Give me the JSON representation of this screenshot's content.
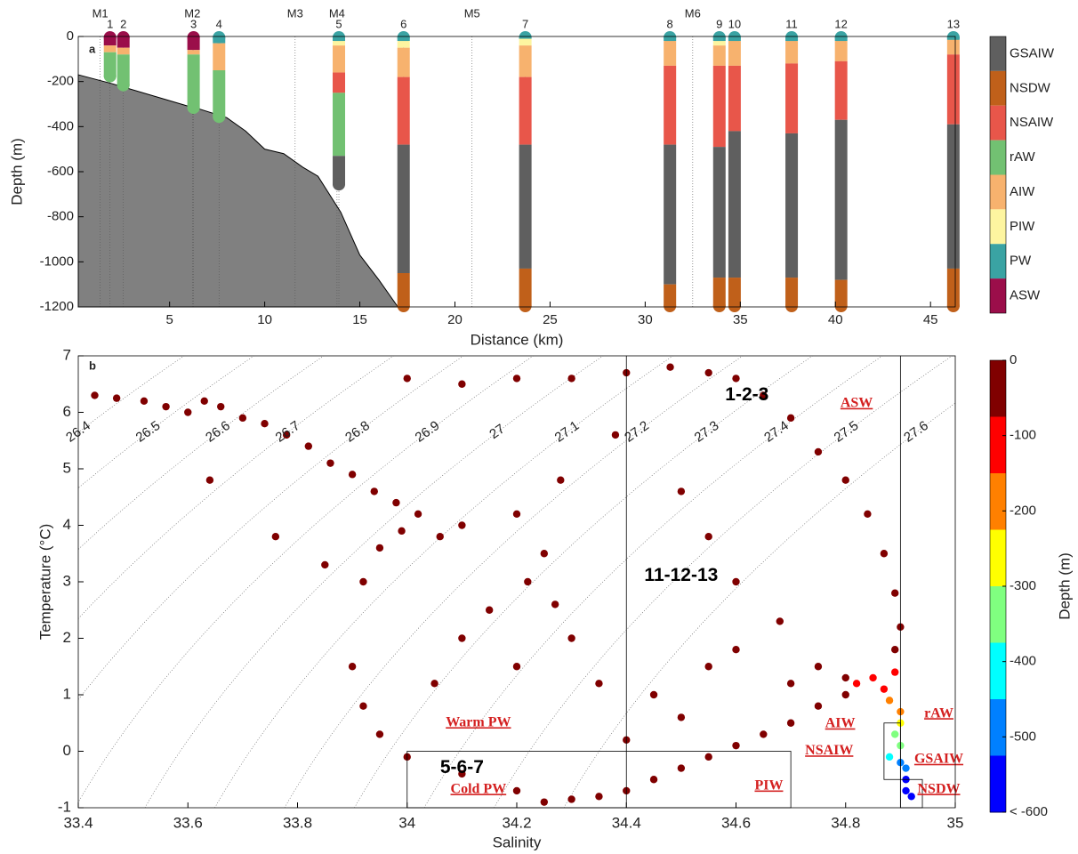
{
  "chart_data": [
    {
      "type": "range",
      "panel_label": "a",
      "xlabel": "Distance (km)",
      "ylabel": "Depth (m)",
      "xlim": [
        0.2,
        46.3
      ],
      "ylim": [
        -1200,
        0
      ],
      "xticks": [
        5,
        10,
        15,
        20,
        25,
        30,
        35,
        40,
        45
      ],
      "yticks": [
        -1200,
        -1000,
        -800,
        -600,
        -400,
        -200,
        0
      ],
      "legend": [
        {
          "name": "GSAIW",
          "color": "#5f5f5f"
        },
        {
          "name": "NSDW",
          "color": "#c0601a"
        },
        {
          "name": "NSAIW",
          "color": "#e8564a"
        },
        {
          "name": "rAW",
          "color": "#72c172"
        },
        {
          "name": "AIW",
          "color": "#f7b26e"
        },
        {
          "name": "PIW",
          "color": "#fdf5a0"
        },
        {
          "name": "PW",
          "color": "#3aa3a3"
        },
        {
          "name": "ASW",
          "color": "#9b0e4a"
        }
      ],
      "moorings": [
        {
          "name": "M1",
          "distance": 1.35
        },
        {
          "name": "M2",
          "distance": 6.2
        },
        {
          "name": "M3",
          "distance": 11.6
        },
        {
          "name": "M4",
          "distance": 13.8
        },
        {
          "name": "M5",
          "distance": 20.9
        },
        {
          "name": "M6",
          "distance": 32.5
        }
      ],
      "stations": [
        {
          "name": "1",
          "distance": 1.87,
          "layers": [
            {
              "mass": "ASW",
              "top": 0,
              "bottom": -40
            },
            {
              "mass": "AIW",
              "top": -40,
              "bottom": -70
            },
            {
              "mass": "rAW",
              "top": -70,
              "bottom": -180
            }
          ]
        },
        {
          "name": "2",
          "distance": 2.57,
          "layers": [
            {
              "mass": "ASW",
              "top": 0,
              "bottom": -50
            },
            {
              "mass": "AIW",
              "top": -50,
              "bottom": -80
            },
            {
              "mass": "rAW",
              "top": -80,
              "bottom": -220
            }
          ]
        },
        {
          "name": "3",
          "distance": 6.26,
          "layers": [
            {
              "mass": "ASW",
              "top": 0,
              "bottom": -60
            },
            {
              "mass": "AIW",
              "top": -60,
              "bottom": -80
            },
            {
              "mass": "rAW",
              "top": -80,
              "bottom": -320
            }
          ]
        },
        {
          "name": "4",
          "distance": 7.6,
          "layers": [
            {
              "mass": "PW",
              "top": 0,
              "bottom": -30
            },
            {
              "mass": "AIW",
              "top": -30,
              "bottom": -150
            },
            {
              "mass": "rAW",
              "top": -150,
              "bottom": -360
            }
          ]
        },
        {
          "name": "5",
          "distance": 13.9,
          "layers": [
            {
              "mass": "PW",
              "top": 0,
              "bottom": -20
            },
            {
              "mass": "PIW",
              "top": -20,
              "bottom": -40
            },
            {
              "mass": "AIW",
              "top": -40,
              "bottom": -160
            },
            {
              "mass": "NSAIW",
              "top": -160,
              "bottom": -250
            },
            {
              "mass": "rAW",
              "top": -250,
              "bottom": -530
            },
            {
              "mass": "GSAIW",
              "top": -530,
              "bottom": -660
            }
          ]
        },
        {
          "name": "6",
          "distance": 17.3,
          "layers": [
            {
              "mass": "PW",
              "top": 0,
              "bottom": -20
            },
            {
              "mass": "PIW",
              "top": -20,
              "bottom": -50
            },
            {
              "mass": "AIW",
              "top": -50,
              "bottom": -180
            },
            {
              "mass": "NSAIW",
              "top": -180,
              "bottom": -480
            },
            {
              "mass": "GSAIW",
              "top": -480,
              "bottom": -1050
            },
            {
              "mass": "NSDW",
              "top": -1050,
              "bottom": -1200
            }
          ]
        },
        {
          "name": "7",
          "distance": 23.7,
          "layers": [
            {
              "mass": "PW",
              "top": 0,
              "bottom": -10
            },
            {
              "mass": "PIW",
              "top": -10,
              "bottom": -40
            },
            {
              "mass": "AIW",
              "top": -40,
              "bottom": -180
            },
            {
              "mass": "NSAIW",
              "top": -180,
              "bottom": -480
            },
            {
              "mass": "GSAIW",
              "top": -480,
              "bottom": -1030
            },
            {
              "mass": "NSDW",
              "top": -1030,
              "bottom": -1200
            }
          ]
        },
        {
          "name": "8",
          "distance": 31.3,
          "layers": [
            {
              "mass": "PW",
              "top": 0,
              "bottom": -20
            },
            {
              "mass": "AIW",
              "top": -20,
              "bottom": -130
            },
            {
              "mass": "NSAIW",
              "top": -130,
              "bottom": -480
            },
            {
              "mass": "GSAIW",
              "top": -480,
              "bottom": -1100
            },
            {
              "mass": "NSDW",
              "top": -1100,
              "bottom": -1200
            }
          ]
        },
        {
          "name": "9",
          "distance": 33.9,
          "layers": [
            {
              "mass": "PW",
              "top": 0,
              "bottom": -20
            },
            {
              "mass": "PIW",
              "top": -20,
              "bottom": -40
            },
            {
              "mass": "AIW",
              "top": -40,
              "bottom": -130
            },
            {
              "mass": "NSAIW",
              "top": -130,
              "bottom": -490
            },
            {
              "mass": "GSAIW",
              "top": -490,
              "bottom": -1070
            },
            {
              "mass": "NSDW",
              "top": -1070,
              "bottom": -1200
            }
          ]
        },
        {
          "name": "10",
          "distance": 34.7,
          "layers": [
            {
              "mass": "PW",
              "top": 0,
              "bottom": -20
            },
            {
              "mass": "AIW",
              "top": -20,
              "bottom": -130
            },
            {
              "mass": "NSAIW",
              "top": -130,
              "bottom": -420
            },
            {
              "mass": "GSAIW",
              "top": -420,
              "bottom": -1070
            },
            {
              "mass": "NSDW",
              "top": -1070,
              "bottom": -1200
            }
          ]
        },
        {
          "name": "11",
          "distance": 37.7,
          "layers": [
            {
              "mass": "PW",
              "top": 0,
              "bottom": -20
            },
            {
              "mass": "AIW",
              "top": -20,
              "bottom": -120
            },
            {
              "mass": "NSAIW",
              "top": -120,
              "bottom": -430
            },
            {
              "mass": "GSAIW",
              "top": -430,
              "bottom": -1070
            },
            {
              "mass": "NSDW",
              "top": -1070,
              "bottom": -1200
            }
          ]
        },
        {
          "name": "12",
          "distance": 40.3,
          "layers": [
            {
              "mass": "PW",
              "top": 0,
              "bottom": -20
            },
            {
              "mass": "AIW",
              "top": -20,
              "bottom": -110
            },
            {
              "mass": "NSAIW",
              "top": -110,
              "bottom": -370
            },
            {
              "mass": "GSAIW",
              "top": -370,
              "bottom": -1080
            },
            {
              "mass": "NSDW",
              "top": -1080,
              "bottom": -1200
            }
          ]
        },
        {
          "name": "13",
          "distance": 46.2,
          "layers": [
            {
              "mass": "PW",
              "top": 0,
              "bottom": -15
            },
            {
              "mass": "AIW",
              "top": -15,
              "bottom": -80
            },
            {
              "mass": "NSAIW",
              "top": -80,
              "bottom": -390
            },
            {
              "mass": "GSAIW",
              "top": -390,
              "bottom": -1030
            },
            {
              "mass": "NSDW",
              "top": -1030,
              "bottom": -1200
            }
          ]
        }
      ],
      "bathymetry": {
        "x": [
          0.2,
          2,
          4,
          6,
          6.5,
          8,
          9,
          10,
          11,
          12,
          12.8,
          14,
          15,
          16,
          17
        ],
        "y": [
          -170,
          -210,
          -260,
          -310,
          -320,
          -360,
          -420,
          -500,
          -520,
          -580,
          -620,
          -780,
          -970,
          -1080,
          -1200
        ]
      }
    },
    {
      "type": "scatter",
      "panel_label": "b",
      "xlabel": "Salinity",
      "ylabel": "Temperature (°C)",
      "xlim": [
        33.4,
        35
      ],
      "ylim": [
        -1,
        7
      ],
      "xticks": [
        33.4,
        33.6,
        33.8,
        34,
        34.2,
        34.4,
        34.6,
        34.8,
        35
      ],
      "yticks": [
        -1,
        0,
        1,
        2,
        3,
        4,
        5,
        6,
        7
      ],
      "isopycnals": [
        26.4,
        26.5,
        26.6,
        26.7,
        26.8,
        26.9,
        27,
        27.1,
        27.2,
        27.3,
        27.4,
        27.5,
        27.6
      ],
      "reference_lines": [
        34.4,
        34.9
      ],
      "boxes": [
        {
          "x": [
            34,
            34.7
          ],
          "y": [
            -1,
            0
          ]
        },
        {
          "x": [
            34.87,
            34.9
          ],
          "y": [
            -0.5,
            0.5
          ]
        },
        {
          "x": [
            34.9,
            34.94
          ],
          "y": [
            -1,
            -0.5
          ]
        }
      ],
      "station_groups": [
        "1-2-3",
        "11-12-13",
        "5-6-7"
      ],
      "water_masses": [
        "ASW",
        "Warm PW",
        "Cold PW",
        "PIW",
        "AIW",
        "NSAIW",
        "rAW",
        "GSAIW",
        "NSDW"
      ],
      "points": {
        "s": [
          33.43,
          33.47,
          33.52,
          33.56,
          33.6,
          33.63,
          33.66,
          33.7,
          33.74,
          33.78,
          33.82,
          33.86,
          33.9,
          33.94,
          33.98,
          34.02,
          33.99,
          33.95,
          34.06,
          34.1,
          33.76,
          33.85,
          33.92,
          33.64,
          33.9,
          33.92,
          33.95,
          34,
          34.1,
          34.2,
          34.25,
          34.3,
          34.35,
          34.4,
          34.45,
          34.5,
          34.55,
          34.6,
          34.65,
          34.7,
          34.75,
          34.8,
          34,
          34.1,
          34.2,
          34.3,
          34.4,
          34.48,
          34.55,
          34.6,
          34.65,
          34.7,
          34.75,
          34.8,
          34.84,
          34.87,
          34.89,
          34.9,
          34.89,
          34.2,
          34.25,
          34.22,
          34.27,
          34.3,
          34.1,
          34.2,
          34.35,
          34.45,
          34.55,
          34.6,
          34.68,
          34.6,
          34.55,
          34.5,
          34.38,
          34.28,
          34.15,
          34.05,
          34.4,
          34.5,
          34.7,
          34.75,
          34.8,
          34.82,
          34.85,
          34.87,
          34.88,
          34.89,
          34.9,
          34.9,
          34.89,
          34.9,
          34.88,
          34.9,
          34.91,
          34.91,
          34.91,
          34.92
        ],
        "t": [
          6.3,
          6.25,
          6.2,
          6.1,
          6,
          6.2,
          6.1,
          5.9,
          5.8,
          5.6,
          5.4,
          5.1,
          4.9,
          4.6,
          4.4,
          4.2,
          3.9,
          3.6,
          3.8,
          4,
          3.8,
          3.3,
          3,
          4.8,
          1.5,
          0.8,
          0.3,
          -0.1,
          -0.4,
          -0.7,
          -0.9,
          -0.85,
          -0.8,
          -0.7,
          -0.5,
          -0.3,
          -0.1,
          0.1,
          0.3,
          0.5,
          0.8,
          1,
          6.6,
          6.5,
          6.6,
          6.6,
          6.7,
          6.8,
          6.7,
          6.6,
          6.3,
          5.9,
          5.3,
          4.8,
          4.2,
          3.5,
          2.8,
          2.2,
          1.8,
          4.2,
          3.5,
          3,
          2.6,
          2,
          2,
          1.5,
          1.2,
          1,
          1.5,
          1.8,
          2.3,
          3,
          3.8,
          4.6,
          5.6,
          4.8,
          2.5,
          1.2,
          0.2,
          0.6,
          1.2,
          1.5,
          1.3,
          1.2,
          1.3,
          1.1,
          0.9,
          1.4,
          0.7,
          0.5,
          0.3,
          0.1,
          -0.1,
          -0.2,
          -0.3,
          -0.5,
          -0.7,
          -0.8
        ],
        "depth": [
          0,
          -5,
          0,
          -10,
          -5,
          0,
          -15,
          -10,
          -5,
          -20,
          0,
          -10,
          -5,
          -15,
          -20,
          -10,
          -25,
          -5,
          -10,
          -15,
          0,
          -20,
          -10,
          -5,
          -30,
          -40,
          -35,
          -30,
          -25,
          -20,
          -15,
          -10,
          -20,
          -25,
          -30,
          -35,
          -40,
          -45,
          -50,
          -55,
          -60,
          -65,
          0,
          -5,
          -10,
          -5,
          0,
          -10,
          -15,
          -5,
          -10,
          -15,
          -20,
          -25,
          -30,
          -35,
          -40,
          -45,
          -60,
          -10,
          -15,
          -20,
          -25,
          -30,
          -20,
          -25,
          -30,
          -35,
          -40,
          -30,
          -25,
          -20,
          -15,
          -10,
          -5,
          -10,
          -20,
          -30,
          -40,
          -35,
          -50,
          -55,
          -60,
          -100,
          -110,
          -130,
          -150,
          -90,
          -200,
          -250,
          -300,
          -350,
          -400,
          -450,
          -500,
          -560,
          -620,
          -700
        ]
      },
      "colorbar": {
        "label": "Depth (m)",
        "lim": [
          -600,
          0
        ],
        "ticks": [
          {
            "value": -600,
            "label": "< -600"
          },
          -500,
          -400,
          -300,
          -200,
          -100,
          0
        ],
        "colors": [
          "#800000",
          "#ff0000",
          "#ff8000",
          "#ffff00",
          "#80ff80",
          "#00ffff",
          "#0080ff",
          "#0000ff"
        ]
      }
    }
  ]
}
